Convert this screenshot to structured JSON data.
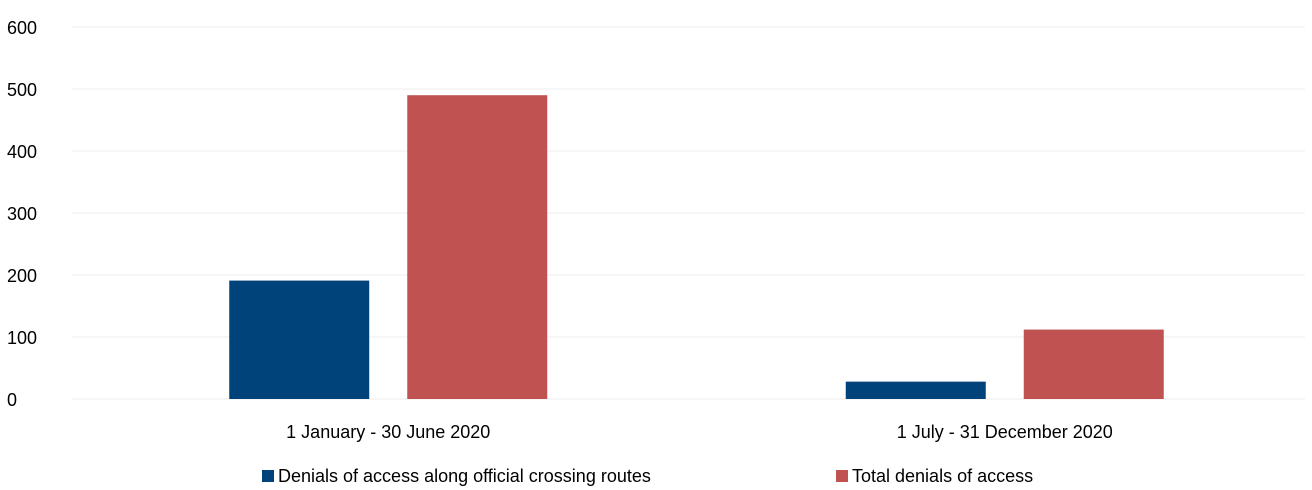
{
  "chart_data": {
    "type": "bar",
    "categories": [
      "1 January - 30 June 2020",
      "1 July - 31 December 2020"
    ],
    "series": [
      {
        "name": "Denials of access along official crossing routes",
        "values": [
          191,
          28
        ],
        "color": "#00427a"
      },
      {
        "name": "Total denials of access",
        "values": [
          490,
          112
        ],
        "color": "#c05252"
      }
    ],
    "ylim": [
      0,
      600
    ],
    "yticks": [
      0,
      100,
      200,
      300,
      400,
      500,
      600
    ],
    "grid": true,
    "legend": "bottom"
  }
}
